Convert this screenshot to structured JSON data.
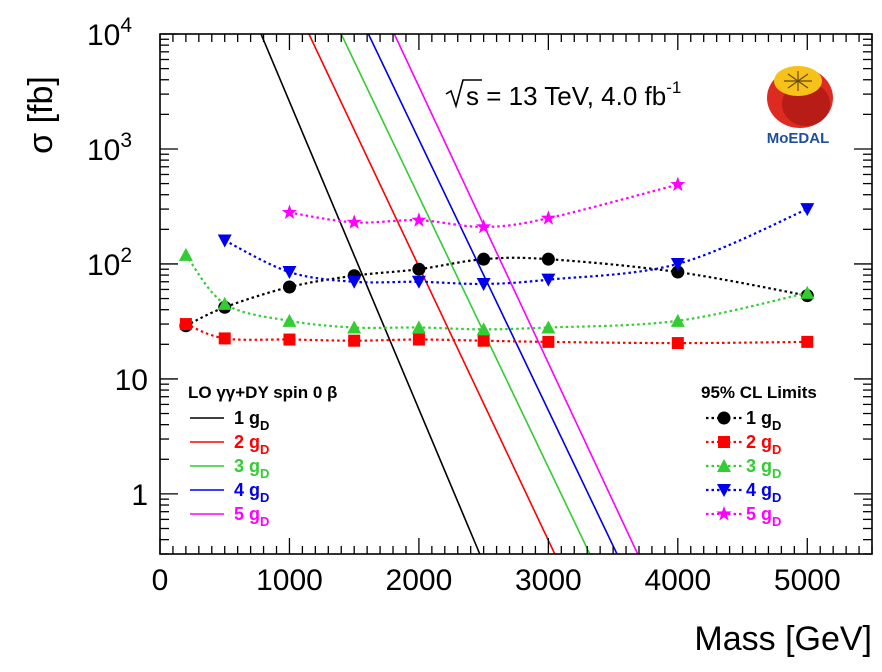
{
  "chart_data": {
    "type": "line",
    "ylabel": "σ [fb]",
    "xlabel": "Mass [GeV]",
    "x_range": [
      0,
      5500
    ],
    "y_range": [
      0.3,
      10000
    ],
    "y_scale": "log",
    "grid": false,
    "x_ticks": [
      "0",
      "1000",
      "2000",
      "3000",
      "4000",
      "5000"
    ],
    "x_tick_values": [
      0,
      1000,
      2000,
      3000,
      4000,
      5000
    ],
    "y_ticks": [
      {
        "value": 1,
        "base": "1",
        "exp": ""
      },
      {
        "value": 10,
        "base": "10",
        "exp": ""
      },
      {
        "value": 100,
        "base": "10",
        "exp": "2"
      },
      {
        "value": 1000,
        "base": "10",
        "exp": "3"
      },
      {
        "value": 10000,
        "base": "10",
        "exp": "4"
      }
    ],
    "annotation": {
      "prefix": "s = 13 TeV, 4.0 fb",
      "sup": "-1"
    },
    "logo_text": "MoEDAL",
    "theory_legend_title": "LO γγ+DY spin 0 β",
    "limits_legend_title": "95% CL Limits",
    "theory_series": [
      {
        "name": "1 g",
        "sub": "D",
        "color": "#000000",
        "points": [
          [
            780,
            10000
          ],
          [
            2470,
            0.3
          ]
        ]
      },
      {
        "name": "2 g",
        "sub": "D",
        "color": "#ff0000",
        "points": [
          [
            1150,
            10000
          ],
          [
            3050,
            0.3
          ]
        ]
      },
      {
        "name": "3 g",
        "sub": "D",
        "color": "#33cc33",
        "points": [
          [
            1400,
            10000
          ],
          [
            3320,
            0.3
          ]
        ]
      },
      {
        "name": "4 g",
        "sub": "D",
        "color": "#0000ee",
        "points": [
          [
            1610,
            10000
          ],
          [
            3530,
            0.3
          ]
        ]
      },
      {
        "name": "5 g",
        "sub": "D",
        "color": "#ff00ff",
        "points": [
          [
            1810,
            10000
          ],
          [
            3690,
            0.3
          ]
        ]
      }
    ],
    "limit_series": [
      {
        "name": "1 g",
        "sub": "D",
        "color": "#000000",
        "marker": "circle",
        "x": [
          200,
          500,
          1000,
          1500,
          2000,
          2500,
          3000,
          4000,
          5000
        ],
        "y": [
          29,
          42,
          63,
          79,
          90,
          110,
          110,
          85,
          53
        ]
      },
      {
        "name": "2 g",
        "sub": "D",
        "color": "#ff0000",
        "marker": "square",
        "x": [
          200,
          500,
          1000,
          1500,
          2000,
          2500,
          3000,
          4000,
          5000
        ],
        "y": [
          30,
          22.5,
          22,
          21.5,
          22,
          21.5,
          21,
          20.5,
          21
        ]
      },
      {
        "name": "3 g",
        "sub": "D",
        "color": "#33cc33",
        "marker": "triangle-up",
        "x": [
          200,
          500,
          1000,
          1500,
          2000,
          2500,
          3000,
          4000,
          5000
        ],
        "y": [
          120,
          45,
          32,
          28,
          28,
          27,
          28,
          32,
          56
        ]
      },
      {
        "name": "4 g",
        "sub": "D",
        "color": "#0000ee",
        "marker": "triangle-down",
        "x": [
          500,
          1000,
          1500,
          2000,
          2500,
          3000,
          4000,
          5000
        ],
        "y": [
          160,
          85,
          70,
          70,
          67,
          73,
          100,
          300
        ]
      },
      {
        "name": "5 g",
        "sub": "D",
        "color": "#ff00ff",
        "marker": "star",
        "x": [
          1000,
          1500,
          2000,
          2500,
          3000,
          4000
        ],
        "y": [
          280,
          230,
          240,
          210,
          250,
          490
        ]
      }
    ]
  }
}
